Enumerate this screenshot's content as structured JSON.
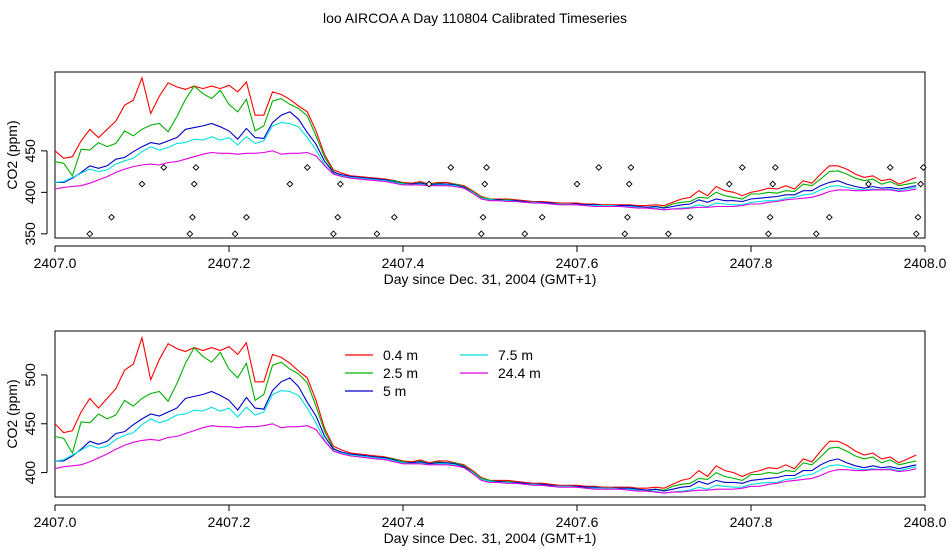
{
  "figure": {
    "title": "loo AIRCOA A  Day 110804  Calibrated Timeseries"
  },
  "chart_data": [
    {
      "type": "line",
      "xlabel": "Day since Dec. 31, 2004 (GMT+1)",
      "ylabel": "CO2 (ppm)",
      "xlim": [
        2407.0,
        2408.0
      ],
      "ylim": [
        345,
        545
      ],
      "xticks": [
        "2407.0",
        "2407.2",
        "2407.4",
        "2407.6",
        "2407.8",
        "2408.0"
      ],
      "yticks": [
        "350",
        "400",
        "450"
      ],
      "legend": "none",
      "colors": {
        "0.4 m": "#ff0000",
        "2.5 m": "#00b000",
        "5 m": "#0000cc",
        "7.5 m": "#00e0e0",
        "24.4 m": "#e000e0"
      },
      "points": {
        "marker": "open-diamond",
        "x": [
          2407.04,
          2407.065,
          2407.1,
          2407.125,
          2407.155,
          2407.158,
          2407.16,
          2407.162,
          2407.207,
          2407.22,
          2407.27,
          2407.29,
          2407.32,
          2407.325,
          2407.328,
          2407.37,
          2407.39,
          2407.43,
          2407.455,
          2407.49,
          2407.492,
          2407.494,
          2407.496,
          2407.54,
          2407.56,
          2407.6,
          2407.625,
          2407.655,
          2407.658,
          2407.66,
          2407.662,
          2407.705,
          2407.73,
          2407.775,
          2407.79,
          2407.82,
          2407.822,
          2407.825,
          2407.828,
          2407.875,
          2407.89,
          2407.935,
          2407.96,
          2407.99,
          2407.992,
          2407.995,
          2407.998
        ],
        "y": [
          350,
          370,
          410,
          430,
          350,
          370,
          410,
          430,
          350,
          370,
          410,
          430,
          350,
          370,
          410,
          350,
          370,
          410,
          430,
          350,
          370,
          410,
          430,
          350,
          370,
          410,
          430,
          350,
          370,
          410,
          430,
          350,
          370,
          410,
          430,
          350,
          370,
          410,
          430,
          350,
          370,
          410,
          430,
          350,
          370,
          410,
          430
        ]
      },
      "x": [
        2407.0,
        2407.01,
        2407.02,
        2407.03,
        2407.04,
        2407.05,
        2407.06,
        2407.07,
        2407.08,
        2407.09,
        2407.1,
        2407.11,
        2407.12,
        2407.13,
        2407.14,
        2407.15,
        2407.16,
        2407.17,
        2407.18,
        2407.19,
        2407.2,
        2407.21,
        2407.22,
        2407.23,
        2407.24,
        2407.25,
        2407.26,
        2407.27,
        2407.28,
        2407.29,
        2407.3,
        2407.31,
        2407.32,
        2407.33,
        2407.34,
        2407.35,
        2407.36,
        2407.37,
        2407.38,
        2407.39,
        2407.4,
        2407.41,
        2407.42,
        2407.43,
        2407.44,
        2407.45,
        2407.46,
        2407.47,
        2407.48,
        2407.49,
        2407.5,
        2407.51,
        2407.52,
        2407.53,
        2407.54,
        2407.55,
        2407.56,
        2407.57,
        2407.58,
        2407.59,
        2407.6,
        2407.61,
        2407.62,
        2407.63,
        2407.64,
        2407.65,
        2407.66,
        2407.67,
        2407.68,
        2407.69,
        2407.7,
        2407.71,
        2407.72,
        2407.73,
        2407.74,
        2407.75,
        2407.76,
        2407.77,
        2407.78,
        2407.79,
        2407.8,
        2407.81,
        2407.82,
        2407.83,
        2407.84,
        2407.85,
        2407.86,
        2407.87,
        2407.88,
        2407.89,
        2407.9,
        2407.91,
        2407.92,
        2407.93,
        2407.94,
        2407.95,
        2407.96,
        2407.97,
        2407.98,
        2407.99
      ],
      "series": [
        {
          "name": "0.4 m",
          "values": [
            450,
            441,
            443,
            462,
            476,
            466,
            476,
            486,
            505,
            511,
            538,
            495,
            516,
            532,
            527,
            524,
            528,
            525,
            528,
            525,
            529,
            521,
            533,
            493,
            493,
            521,
            518,
            512,
            504,
            497,
            474,
            445,
            427,
            423,
            420,
            419,
            418,
            417,
            416,
            414,
            412,
            411,
            413,
            410,
            412,
            412,
            410,
            408,
            402,
            395,
            392,
            392,
            392,
            391,
            390,
            389,
            389,
            388,
            387,
            387,
            387,
            386,
            386,
            385,
            385,
            385,
            385,
            384,
            384,
            385,
            384,
            388,
            392,
            394,
            402,
            396,
            407,
            402,
            400,
            396,
            400,
            402,
            405,
            404,
            408,
            404,
            414,
            411,
            422,
            432,
            432,
            428,
            422,
            418,
            420,
            414,
            416,
            410,
            414,
            418
          ]
        },
        {
          "name": "2.5 m",
          "values": [
            437,
            435,
            420,
            452,
            451,
            460,
            455,
            459,
            474,
            468,
            476,
            481,
            483,
            473,
            491,
            512,
            528,
            519,
            513,
            523,
            506,
            497,
            512,
            474,
            480,
            510,
            513,
            506,
            501,
            492,
            468,
            442,
            425,
            420,
            418,
            418,
            417,
            416,
            415,
            414,
            411,
            410,
            412,
            409,
            411,
            410,
            410,
            407,
            401,
            394,
            392,
            391,
            391,
            390,
            389,
            388,
            388,
            387,
            386,
            386,
            386,
            385,
            385,
            384,
            384,
            384,
            384,
            383,
            382,
            383,
            382,
            386,
            388,
            389,
            394,
            393,
            400,
            396,
            394,
            392,
            398,
            398,
            400,
            399,
            402,
            401,
            410,
            408,
            416,
            425,
            426,
            422,
            417,
            414,
            416,
            410,
            413,
            408,
            410,
            412
          ]
        },
        {
          "name": "5 m",
          "values": [
            412,
            412,
            417,
            424,
            432,
            429,
            432,
            440,
            442,
            449,
            455,
            460,
            458,
            462,
            466,
            476,
            478,
            480,
            483,
            479,
            474,
            464,
            477,
            466,
            465,
            484,
            493,
            497,
            488,
            472,
            458,
            437,
            424,
            421,
            419,
            418,
            417,
            416,
            415,
            413,
            410,
            410,
            411,
            409,
            410,
            410,
            409,
            406,
            400,
            393,
            391,
            391,
            390,
            390,
            389,
            388,
            388,
            387,
            386,
            386,
            386,
            385,
            385,
            384,
            384,
            384,
            384,
            383,
            382,
            383,
            381,
            383,
            385,
            386,
            391,
            388,
            392,
            390,
            390,
            389,
            392,
            393,
            394,
            395,
            397,
            397,
            402,
            402,
            408,
            412,
            414,
            410,
            407,
            405,
            407,
            405,
            406,
            404,
            406,
            408
          ]
        },
        {
          "name": "7.5 m",
          "values": [
            412,
            413,
            418,
            423,
            428,
            425,
            427,
            434,
            438,
            441,
            449,
            455,
            451,
            454,
            459,
            460,
            464,
            463,
            467,
            463,
            466,
            457,
            467,
            459,
            462,
            480,
            484,
            483,
            479,
            466,
            451,
            433,
            422,
            420,
            418,
            417,
            416,
            415,
            414,
            412,
            410,
            409,
            410,
            408,
            409,
            409,
            408,
            405,
            400,
            393,
            391,
            390,
            390,
            389,
            388,
            388,
            387,
            386,
            386,
            386,
            385,
            384,
            384,
            384,
            384,
            383,
            383,
            382,
            381,
            381,
            379,
            380,
            381,
            382,
            385,
            383,
            387,
            386,
            385,
            385,
            388,
            389,
            390,
            390,
            393,
            394,
            397,
            398,
            403,
            407,
            408,
            406,
            404,
            403,
            404,
            403,
            404,
            402,
            404,
            406
          ]
        },
        {
          "name": "24.4 m",
          "values": [
            404,
            406,
            407,
            408,
            411,
            415,
            419,
            424,
            428,
            431,
            433,
            434,
            433,
            436,
            437,
            440,
            443,
            446,
            448,
            447,
            447,
            446,
            447,
            447,
            448,
            450,
            446,
            447,
            447,
            448,
            444,
            432,
            422,
            419,
            417,
            416,
            415,
            414,
            413,
            411,
            409,
            409,
            409,
            408,
            408,
            408,
            407,
            405,
            399,
            392,
            390,
            390,
            389,
            389,
            388,
            387,
            387,
            386,
            385,
            385,
            385,
            384,
            383,
            383,
            383,
            383,
            382,
            381,
            381,
            380,
            379,
            380,
            380,
            381,
            382,
            382,
            383,
            383,
            383,
            384,
            386,
            386,
            388,
            389,
            391,
            392,
            393,
            394,
            397,
            401,
            403,
            403,
            402,
            402,
            403,
            403,
            403,
            401,
            402,
            404
          ]
        }
      ]
    },
    {
      "type": "line",
      "xlabel": "Day since Dec. 31, 2004 (GMT+1)",
      "ylabel": "CO2 (ppm)",
      "xlim": [
        2407.0,
        2408.0
      ],
      "ylim": [
        375,
        545
      ],
      "xticks": [
        "2407.0",
        "2407.2",
        "2407.4",
        "2407.6",
        "2407.8",
        "2408.0"
      ],
      "yticks": [
        "400",
        "450",
        "500"
      ],
      "legend": "top-center",
      "legend_items": [
        "0.4 m",
        "2.5 m",
        "5 m",
        "7.5 m",
        "24.4 m"
      ],
      "same_series_as": "panel 1"
    }
  ]
}
